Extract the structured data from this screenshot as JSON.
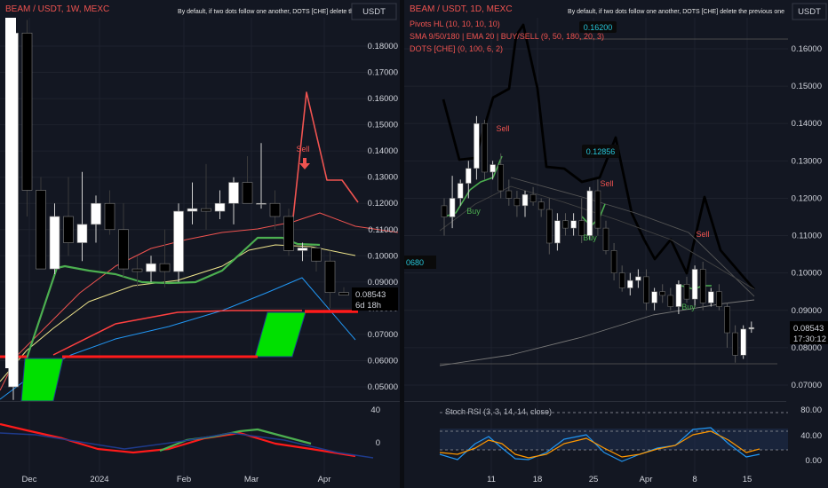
{
  "left": {
    "title": "BEAM / USDT, 1W, MEXC",
    "notice": "By default, if two dots follow one another, DOTS [CHE] delete the previous one",
    "currency": "USDT",
    "price_badge": "0.08543",
    "countdown": "6d 18h",
    "sell_label": "Sell",
    "sub_ticks": [
      "40",
      "0"
    ],
    "colors": {
      "up": "#ffffff",
      "down": "#000000",
      "accent": "#ef5350",
      "green": "#00e000",
      "red": "#ff1a1a"
    }
  },
  "right": {
    "title": "BEAM / USDT, 1D, MEXC",
    "indicator_1": "Pivots HL (10, 10, 10, 10)",
    "indicator_2": "SMA 9/50/180 | EMA 20 | BUY/SELL (9, 50, 180, 20, 3)",
    "indicator_3": "DOTS [CHE] (0, 100, 6, 2)",
    "notice": "By default, if two dots follow one another, DOTS [CHE] delete the previous one",
    "currency": "USDT",
    "price_badge": "0.08543",
    "countdown": "17:30:12",
    "pivot_high_label": "0.16200",
    "pivot_mid_label": "0.12856",
    "pivot_low_label": "0680",
    "labels": {
      "buy": "Buy",
      "sell": "Sell"
    },
    "stoch_title": "Stoch RSI (3, 3, 14, 14, close)",
    "stoch_ticks": [
      "80.00",
      "40.00",
      "0.00"
    ]
  },
  "chart_data": [
    {
      "type": "candlestick",
      "title": "BEAM / USDT, 1W, MEXC",
      "ylim": [
        0.045,
        0.185
      ],
      "y_ticks": [
        "0.18000",
        "0.17000",
        "0.16000",
        "0.15000",
        "0.14000",
        "0.13000",
        "0.12000",
        "0.11000",
        "0.10000",
        "0.09000",
        "0.08000",
        "0.07000",
        "0.06000",
        "0.05000"
      ],
      "x_ticks": [
        "Dec",
        "2024",
        "Feb",
        "Mar",
        "Apr"
      ],
      "candles": [
        {
          "o": 0.05,
          "h": 0.185,
          "l": 0.045,
          "c": 0.185
        },
        {
          "o": 0.185,
          "h": 0.19,
          "l": 0.115,
          "c": 0.125
        },
        {
          "o": 0.125,
          "h": 0.13,
          "l": 0.095,
          "c": 0.095
        },
        {
          "o": 0.095,
          "h": 0.12,
          "l": 0.093,
          "c": 0.115
        },
        {
          "o": 0.115,
          "h": 0.13,
          "l": 0.1,
          "c": 0.105
        },
        {
          "o": 0.105,
          "h": 0.132,
          "l": 0.098,
          "c": 0.112
        },
        {
          "o": 0.112,
          "h": 0.123,
          "l": 0.105,
          "c": 0.12
        },
        {
          "o": 0.12,
          "h": 0.125,
          "l": 0.108,
          "c": 0.11
        },
        {
          "o": 0.11,
          "h": 0.12,
          "l": 0.092,
          "c": 0.095
        },
        {
          "o": 0.095,
          "h": 0.1,
          "l": 0.088,
          "c": 0.094
        },
        {
          "o": 0.094,
          "h": 0.1,
          "l": 0.09,
          "c": 0.097
        },
        {
          "o": 0.097,
          "h": 0.11,
          "l": 0.088,
          "c": 0.094
        },
        {
          "o": 0.094,
          "h": 0.12,
          "l": 0.09,
          "c": 0.117
        },
        {
          "o": 0.117,
          "h": 0.128,
          "l": 0.112,
          "c": 0.118
        },
        {
          "o": 0.118,
          "h": 0.135,
          "l": 0.11,
          "c": 0.117
        },
        {
          "o": 0.117,
          "h": 0.125,
          "l": 0.114,
          "c": 0.12
        },
        {
          "o": 0.12,
          "h": 0.13,
          "l": 0.112,
          "c": 0.128
        },
        {
          "o": 0.128,
          "h": 0.138,
          "l": 0.12,
          "c": 0.12
        },
        {
          "o": 0.12,
          "h": 0.143,
          "l": 0.118,
          "c": 0.12
        },
        {
          "o": 0.12,
          "h": 0.125,
          "l": 0.11,
          "c": 0.115
        },
        {
          "o": 0.115,
          "h": 0.118,
          "l": 0.1,
          "c": 0.102
        },
        {
          "o": 0.102,
          "h": 0.105,
          "l": 0.098,
          "c": 0.103
        },
        {
          "o": 0.103,
          "h": 0.104,
          "l": 0.094,
          "c": 0.098
        },
        {
          "o": 0.098,
          "h": 0.102,
          "l": 0.08,
          "c": 0.086
        },
        {
          "o": 0.086,
          "h": 0.088,
          "l": 0.085,
          "c": 0.085
        }
      ]
    },
    {
      "type": "candlestick",
      "title": "BEAM / USDT, 1D, MEXC",
      "ylim": [
        0.069,
        0.17
      ],
      "y_ticks": [
        "0.16000",
        "0.15000",
        "0.14000",
        "0.13000",
        "0.12000",
        "0.11000",
        "0.10000",
        "0.09000",
        "0.08000",
        "0.07000"
      ],
      "x_ticks": [
        "11",
        "18",
        "25",
        "Apr",
        "8",
        "15"
      ],
      "candles": [
        {
          "o": 0.118,
          "h": 0.12,
          "l": 0.11,
          "c": 0.115
        },
        {
          "o": 0.115,
          "h": 0.126,
          "l": 0.112,
          "c": 0.12
        },
        {
          "o": 0.12,
          "h": 0.125,
          "l": 0.118,
          "c": 0.124
        },
        {
          "o": 0.124,
          "h": 0.13,
          "l": 0.12,
          "c": 0.128
        },
        {
          "o": 0.128,
          "h": 0.142,
          "l": 0.125,
          "c": 0.14
        },
        {
          "o": 0.14,
          "h": 0.141,
          "l": 0.125,
          "c": 0.127
        },
        {
          "o": 0.127,
          "h": 0.13,
          "l": 0.125,
          "c": 0.129
        },
        {
          "o": 0.129,
          "h": 0.132,
          "l": 0.12,
          "c": 0.122
        },
        {
          "o": 0.122,
          "h": 0.125,
          "l": 0.118,
          "c": 0.12
        },
        {
          "o": 0.12,
          "h": 0.122,
          "l": 0.115,
          "c": 0.118
        },
        {
          "o": 0.118,
          "h": 0.122,
          "l": 0.115,
          "c": 0.121
        },
        {
          "o": 0.121,
          "h": 0.123,
          "l": 0.118,
          "c": 0.119
        },
        {
          "o": 0.119,
          "h": 0.12,
          "l": 0.115,
          "c": 0.117
        },
        {
          "o": 0.117,
          "h": 0.12,
          "l": 0.105,
          "c": 0.108
        },
        {
          "o": 0.108,
          "h": 0.116,
          "l": 0.106,
          "c": 0.114
        },
        {
          "o": 0.114,
          "h": 0.116,
          "l": 0.11,
          "c": 0.112
        },
        {
          "o": 0.112,
          "h": 0.116,
          "l": 0.11,
          "c": 0.114
        },
        {
          "o": 0.114,
          "h": 0.12,
          "l": 0.108,
          "c": 0.11
        },
        {
          "o": 0.11,
          "h": 0.123,
          "l": 0.109,
          "c": 0.122
        },
        {
          "o": 0.122,
          "h": 0.125,
          "l": 0.11,
          "c": 0.112
        },
        {
          "o": 0.112,
          "h": 0.114,
          "l": 0.105,
          "c": 0.106
        },
        {
          "o": 0.106,
          "h": 0.108,
          "l": 0.098,
          "c": 0.1
        },
        {
          "o": 0.1,
          "h": 0.102,
          "l": 0.095,
          "c": 0.096
        },
        {
          "o": 0.096,
          "h": 0.1,
          "l": 0.094,
          "c": 0.098
        },
        {
          "o": 0.098,
          "h": 0.101,
          "l": 0.096,
          "c": 0.099
        },
        {
          "o": 0.099,
          "h": 0.101,
          "l": 0.09,
          "c": 0.092
        },
        {
          "o": 0.092,
          "h": 0.096,
          "l": 0.09,
          "c": 0.095
        },
        {
          "o": 0.095,
          "h": 0.097,
          "l": 0.092,
          "c": 0.094
        },
        {
          "o": 0.094,
          "h": 0.096,
          "l": 0.09,
          "c": 0.091
        },
        {
          "o": 0.091,
          "h": 0.098,
          "l": 0.089,
          "c": 0.097
        },
        {
          "o": 0.097,
          "h": 0.099,
          "l": 0.092,
          "c": 0.093
        },
        {
          "o": 0.093,
          "h": 0.102,
          "l": 0.091,
          "c": 0.101
        },
        {
          "o": 0.101,
          "h": 0.103,
          "l": 0.09,
          "c": 0.092
        },
        {
          "o": 0.092,
          "h": 0.096,
          "l": 0.091,
          "c": 0.095
        },
        {
          "o": 0.095,
          "h": 0.097,
          "l": 0.09,
          "c": 0.091
        },
        {
          "o": 0.091,
          "h": 0.092,
          "l": 0.08,
          "c": 0.084
        },
        {
          "o": 0.084,
          "h": 0.086,
          "l": 0.076,
          "c": 0.078
        },
        {
          "o": 0.078,
          "h": 0.086,
          "l": 0.077,
          "c": 0.085
        },
        {
          "o": 0.085,
          "h": 0.087,
          "l": 0.084,
          "c": 0.0854
        }
      ]
    }
  ]
}
